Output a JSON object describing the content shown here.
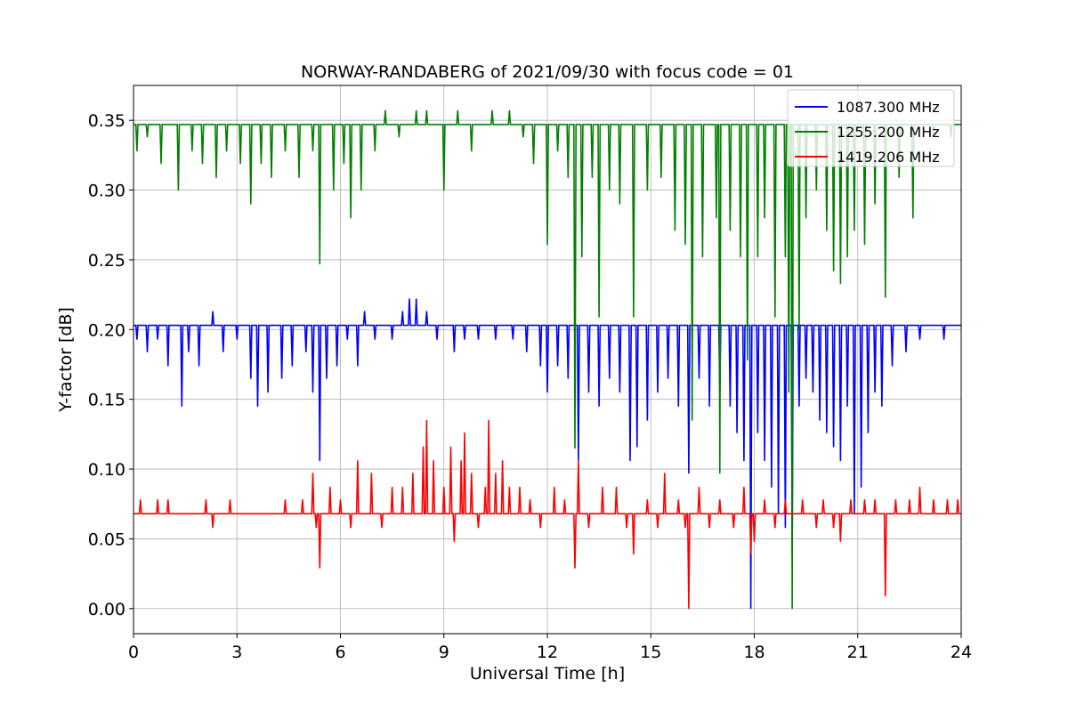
{
  "chart_data": {
    "type": "line",
    "title": "NORWAY-RANDABERG of 2021/09/30 with focus code = 01",
    "xlabel": "Universal Time [h]",
    "ylabel": "Y-factor [dB]",
    "xlim": [
      0,
      24
    ],
    "ylim": [
      -0.018,
      0.375
    ],
    "xticks": [
      0,
      3,
      6,
      9,
      12,
      15,
      18,
      21,
      24
    ],
    "yticks": [
      0.0,
      0.05,
      0.1,
      0.15,
      0.2,
      0.25,
      0.3,
      0.35
    ],
    "ytick_labels": [
      "0.00",
      "0.05",
      "0.10",
      "0.15",
      "0.20",
      "0.25",
      "0.30",
      "0.35"
    ],
    "grid": true,
    "legend_position": "top-right",
    "series": [
      {
        "name": "1087.300 MHz",
        "color": "#0000ff",
        "baseline": 0.203,
        "spikes": [
          [
            0.1,
            0.193
          ],
          [
            0.4,
            0.184
          ],
          [
            0.7,
            0.193
          ],
          [
            1.0,
            0.174
          ],
          [
            1.4,
            0.145
          ],
          [
            1.6,
            0.184
          ],
          [
            1.9,
            0.174
          ],
          [
            2.3,
            0.213
          ],
          [
            2.6,
            0.184
          ],
          [
            3.0,
            0.193
          ],
          [
            3.4,
            0.165
          ],
          [
            3.6,
            0.145
          ],
          [
            3.9,
            0.155
          ],
          [
            4.3,
            0.165
          ],
          [
            4.6,
            0.174
          ],
          [
            5.0,
            0.184
          ],
          [
            5.2,
            0.155
          ],
          [
            5.4,
            0.106
          ],
          [
            5.6,
            0.165
          ],
          [
            5.9,
            0.174
          ],
          [
            6.2,
            0.193
          ],
          [
            6.5,
            0.174
          ],
          [
            6.7,
            0.213
          ],
          [
            7.0,
            0.193
          ],
          [
            7.5,
            0.193
          ],
          [
            7.8,
            0.213
          ],
          [
            8.0,
            0.222
          ],
          [
            8.2,
            0.222
          ],
          [
            8.5,
            0.213
          ],
          [
            8.8,
            0.193
          ],
          [
            9.3,
            0.184
          ],
          [
            9.6,
            0.193
          ],
          [
            10.0,
            0.193
          ],
          [
            10.5,
            0.193
          ],
          [
            11.0,
            0.193
          ],
          [
            11.4,
            0.184
          ],
          [
            11.8,
            0.174
          ],
          [
            12.0,
            0.155
          ],
          [
            12.3,
            0.174
          ],
          [
            12.6,
            0.165
          ],
          [
            12.9,
            0.106
          ],
          [
            13.2,
            0.155
          ],
          [
            13.5,
            0.145
          ],
          [
            13.8,
            0.165
          ],
          [
            14.1,
            0.155
          ],
          [
            14.4,
            0.106
          ],
          [
            14.6,
            0.116
          ],
          [
            14.9,
            0.135
          ],
          [
            15.2,
            0.155
          ],
          [
            15.5,
            0.165
          ],
          [
            15.8,
            0.145
          ],
          [
            16.1,
            0.097
          ],
          [
            16.4,
            0.165
          ],
          [
            16.7,
            0.145
          ],
          [
            17.0,
            0.155
          ],
          [
            17.3,
            0.145
          ],
          [
            17.5,
            0.126
          ],
          [
            17.7,
            0.106
          ],
          [
            17.9,
            0.0
          ],
          [
            18.1,
            0.126
          ],
          [
            18.3,
            0.106
          ],
          [
            18.5,
            0.087
          ],
          [
            18.7,
            0.068
          ],
          [
            18.9,
            0.058
          ],
          [
            19.1,
            0.039
          ],
          [
            19.3,
            0.145
          ],
          [
            19.5,
            0.165
          ],
          [
            19.7,
            0.155
          ],
          [
            19.9,
            0.135
          ],
          [
            20.1,
            0.126
          ],
          [
            20.3,
            0.116
          ],
          [
            20.5,
            0.106
          ],
          [
            20.7,
            0.145
          ],
          [
            20.9,
            0.068
          ],
          [
            21.1,
            0.087
          ],
          [
            21.3,
            0.126
          ],
          [
            21.5,
            0.155
          ],
          [
            21.7,
            0.145
          ],
          [
            22.0,
            0.174
          ],
          [
            22.4,
            0.184
          ],
          [
            22.8,
            0.193
          ],
          [
            23.5,
            0.193
          ]
        ]
      },
      {
        "name": "1255.200 MHz",
        "color": "#008000",
        "baseline": 0.347,
        "spikes": [
          [
            0.1,
            0.328
          ],
          [
            0.4,
            0.338
          ],
          [
            0.8,
            0.319
          ],
          [
            1.3,
            0.3
          ],
          [
            1.7,
            0.328
          ],
          [
            2.0,
            0.319
          ],
          [
            2.4,
            0.309
          ],
          [
            2.7,
            0.328
          ],
          [
            3.1,
            0.319
          ],
          [
            3.4,
            0.29
          ],
          [
            3.7,
            0.319
          ],
          [
            4.0,
            0.309
          ],
          [
            4.4,
            0.328
          ],
          [
            4.8,
            0.309
          ],
          [
            5.2,
            0.328
          ],
          [
            5.4,
            0.247
          ],
          [
            5.8,
            0.3
          ],
          [
            6.1,
            0.319
          ],
          [
            6.3,
            0.28
          ],
          [
            6.6,
            0.3
          ],
          [
            7.0,
            0.328
          ],
          [
            7.3,
            0.357
          ],
          [
            7.7,
            0.338
          ],
          [
            8.2,
            0.357
          ],
          [
            8.5,
            0.357
          ],
          [
            9.0,
            0.3
          ],
          [
            9.4,
            0.357
          ],
          [
            9.8,
            0.328
          ],
          [
            10.4,
            0.357
          ],
          [
            10.9,
            0.357
          ],
          [
            11.3,
            0.338
          ],
          [
            11.6,
            0.319
          ],
          [
            12.0,
            0.261
          ],
          [
            12.3,
            0.328
          ],
          [
            12.6,
            0.309
          ],
          [
            12.8,
            0.115
          ],
          [
            13.0,
            0.252
          ],
          [
            13.3,
            0.309
          ],
          [
            13.5,
            0.209
          ],
          [
            13.8,
            0.3
          ],
          [
            14.1,
            0.29
          ],
          [
            14.5,
            0.209
          ],
          [
            14.9,
            0.3
          ],
          [
            15.3,
            0.309
          ],
          [
            15.7,
            0.271
          ],
          [
            16.0,
            0.261
          ],
          [
            16.2,
            0.135
          ],
          [
            16.5,
            0.252
          ],
          [
            16.9,
            0.28
          ],
          [
            17.0,
            0.097
          ],
          [
            17.3,
            0.271
          ],
          [
            17.6,
            0.252
          ],
          [
            17.8,
            0.178
          ],
          [
            18.1,
            0.252
          ],
          [
            18.3,
            0.28
          ],
          [
            18.6,
            0.209
          ],
          [
            18.9,
            0.252
          ],
          [
            19.0,
            0.155
          ],
          [
            19.1,
            0.0
          ],
          [
            19.3,
            0.2
          ],
          [
            19.5,
            0.28
          ],
          [
            19.8,
            0.3
          ],
          [
            20.1,
            0.271
          ],
          [
            20.3,
            0.242
          ],
          [
            20.5,
            0.233
          ],
          [
            20.7,
            0.252
          ],
          [
            20.9,
            0.271
          ],
          [
            21.2,
            0.261
          ],
          [
            21.5,
            0.29
          ],
          [
            21.8,
            0.223
          ],
          [
            22.2,
            0.309
          ],
          [
            22.6,
            0.28
          ],
          [
            23.2,
            0.338
          ],
          [
            23.7,
            0.338
          ]
        ]
      },
      {
        "name": "1419.206 MHz",
        "color": "#ff0000",
        "baseline": 0.068,
        "spikes": [
          [
            0.2,
            0.078
          ],
          [
            0.7,
            0.078
          ],
          [
            1.0,
            0.078
          ],
          [
            2.1,
            0.078
          ],
          [
            2.3,
            0.058
          ],
          [
            2.8,
            0.078
          ],
          [
            4.4,
            0.078
          ],
          [
            4.9,
            0.078
          ],
          [
            5.2,
            0.097
          ],
          [
            5.3,
            0.058
          ],
          [
            5.4,
            0.029
          ],
          [
            5.7,
            0.087
          ],
          [
            6.0,
            0.078
          ],
          [
            6.3,
            0.058
          ],
          [
            6.5,
            0.106
          ],
          [
            6.9,
            0.097
          ],
          [
            7.2,
            0.058
          ],
          [
            7.5,
            0.087
          ],
          [
            7.8,
            0.087
          ],
          [
            8.1,
            0.097
          ],
          [
            8.4,
            0.116
          ],
          [
            8.5,
            0.135
          ],
          [
            8.7,
            0.106
          ],
          [
            9.0,
            0.087
          ],
          [
            9.2,
            0.116
          ],
          [
            9.3,
            0.048
          ],
          [
            9.5,
            0.106
          ],
          [
            9.6,
            0.126
          ],
          [
            9.8,
            0.097
          ],
          [
            10.0,
            0.058
          ],
          [
            10.2,
            0.087
          ],
          [
            10.3,
            0.135
          ],
          [
            10.5,
            0.097
          ],
          [
            10.7,
            0.106
          ],
          [
            10.9,
            0.087
          ],
          [
            11.2,
            0.087
          ],
          [
            11.5,
            0.078
          ],
          [
            11.8,
            0.058
          ],
          [
            12.2,
            0.087
          ],
          [
            12.5,
            0.078
          ],
          [
            12.8,
            0.029
          ],
          [
            12.9,
            0.106
          ],
          [
            13.2,
            0.058
          ],
          [
            13.6,
            0.087
          ],
          [
            14.0,
            0.087
          ],
          [
            14.3,
            0.058
          ],
          [
            14.5,
            0.039
          ],
          [
            14.9,
            0.078
          ],
          [
            15.2,
            0.058
          ],
          [
            15.4,
            0.097
          ],
          [
            15.8,
            0.078
          ],
          [
            16.0,
            0.058
          ],
          [
            16.1,
            0.0
          ],
          [
            16.4,
            0.087
          ],
          [
            16.7,
            0.058
          ],
          [
            17.0,
            0.078
          ],
          [
            17.4,
            0.058
          ],
          [
            17.7,
            0.087
          ],
          [
            17.9,
            0.039
          ],
          [
            18.0,
            0.048
          ],
          [
            18.3,
            0.078
          ],
          [
            18.6,
            0.058
          ],
          [
            18.9,
            0.078
          ],
          [
            19.1,
            0.068
          ],
          [
            19.4,
            0.078
          ],
          [
            19.8,
            0.058
          ],
          [
            20.0,
            0.078
          ],
          [
            20.3,
            0.058
          ],
          [
            20.5,
            0.048
          ],
          [
            20.8,
            0.078
          ],
          [
            21.2,
            0.078
          ],
          [
            21.5,
            0.078
          ],
          [
            21.8,
            0.009
          ],
          [
            22.1,
            0.078
          ],
          [
            22.5,
            0.078
          ],
          [
            22.8,
            0.087
          ],
          [
            23.2,
            0.078
          ],
          [
            23.6,
            0.078
          ],
          [
            23.9,
            0.078
          ]
        ]
      }
    ]
  }
}
